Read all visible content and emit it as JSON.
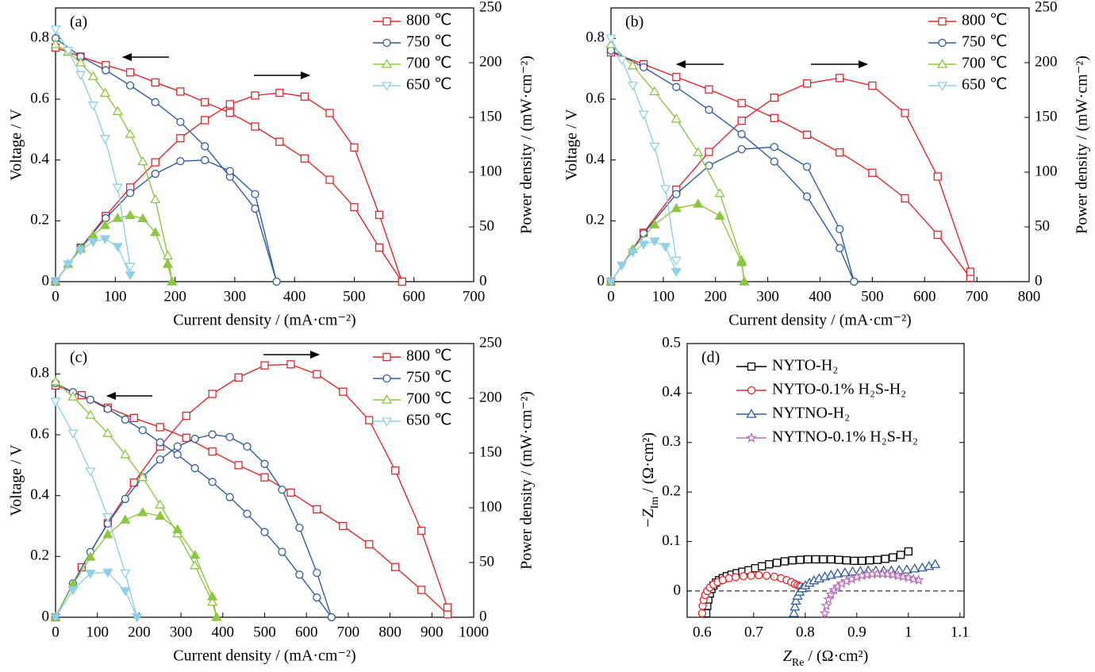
{
  "chart_data": [
    {
      "type": "line",
      "title": "(a)",
      "xlabel": "Current density / (mA·cm⁻²)",
      "ylabel": "Voltage / V",
      "y2label": "Power density / (mW·cm⁻²)",
      "xlim": [
        0,
        700
      ],
      "xticks": [
        0,
        100,
        200,
        300,
        400,
        500,
        600,
        700
      ],
      "ylim": [
        0,
        0.9
      ],
      "yticks": [
        0,
        0.2,
        0.4,
        0.6,
        0.8
      ],
      "y2lim": [
        0,
        250
      ],
      "y2ticks": [
        0,
        50,
        100,
        150,
        200,
        250
      ],
      "legend": "upper right",
      "series": [
        {
          "name": "800 ℃",
          "color": "#e3262a",
          "marker": "square",
          "power_filled": false,
          "x": [
            0,
            42,
            84,
            125,
            167,
            209,
            250,
            292,
            334,
            375,
            417,
            459,
            500,
            542,
            580
          ],
          "values": [
            0.77,
            0.74,
            0.712,
            0.688,
            0.655,
            0.625,
            0.59,
            0.555,
            0.51,
            0.46,
            0.405,
            0.335,
            0.245,
            0.112,
            0
          ],
          "power": [
            0,
            31,
            60,
            86,
            109,
            131,
            147.5,
            162,
            170,
            172.5,
            169,
            154,
            122.5,
            61,
            0
          ]
        },
        {
          "name": "750 ℃",
          "color": "#2e5ca8",
          "marker": "circle",
          "power_filled": false,
          "x": [
            0,
            42,
            84,
            125,
            167,
            209,
            250,
            292,
            334,
            370
          ],
          "values": [
            0.8,
            0.74,
            0.695,
            0.645,
            0.59,
            0.525,
            0.445,
            0.345,
            0.24,
            0
          ],
          "power": [
            0,
            31,
            58,
            81,
            98.5,
            110,
            111,
            101,
            80,
            0
          ]
        },
        {
          "name": "700 ℃",
          "color": "#8dc63f",
          "marker": "triangle-up",
          "power_filled": true,
          "x": [
            0,
            21,
            42,
            63,
            83,
            104,
            125,
            146,
            167,
            188,
            195
          ],
          "values": [
            0.78,
            0.755,
            0.72,
            0.675,
            0.62,
            0.56,
            0.485,
            0.395,
            0.27,
            0.085,
            0
          ],
          "power": [
            0,
            16,
            30,
            42.5,
            51.5,
            58,
            60.6,
            57.7,
            45,
            16,
            0
          ]
        },
        {
          "name": "650 ℃",
          "color": "#8fcfe8",
          "marker": "triangle-down",
          "power_filled": true,
          "x": [
            0,
            21,
            42,
            63,
            83,
            104,
            125
          ],
          "values": [
            0.83,
            0.76,
            0.68,
            0.58,
            0.47,
            0.31,
            0.05
          ],
          "power": [
            0,
            16,
            28.6,
            36.5,
            39,
            32,
            6
          ]
        }
      ]
    },
    {
      "type": "line",
      "title": "(b)",
      "xlabel": "Current density / (mA·cm⁻²)",
      "ylabel": "Voltage / V",
      "y2label": "Power density / (mW·cm⁻²)",
      "xlim": [
        0,
        800
      ],
      "xticks": [
        0,
        100,
        200,
        300,
        400,
        500,
        600,
        700,
        800
      ],
      "ylim": [
        0,
        0.9
      ],
      "yticks": [
        0,
        0.2,
        0.4,
        0.6,
        0.8
      ],
      "y2lim": [
        0,
        250
      ],
      "y2ticks": [
        0,
        50,
        100,
        150,
        200,
        250
      ],
      "legend": "upper right",
      "series": [
        {
          "name": "800 ℃",
          "color": "#e3262a",
          "marker": "square",
          "power_filled": false,
          "x": [
            0,
            62.5,
            125,
            187.5,
            250,
            312.5,
            375,
            437.5,
            500,
            562.5,
            625,
            687.5
          ],
          "values": [
            0.754,
            0.715,
            0.673,
            0.632,
            0.587,
            0.538,
            0.483,
            0.425,
            0.358,
            0.274,
            0.154,
            0.013
          ],
          "power": [
            0,
            44.7,
            84,
            118.5,
            147,
            168,
            181,
            186,
            179,
            154,
            96,
            9
          ]
        },
        {
          "name": "750 ℃",
          "color": "#2e5ca8",
          "marker": "circle",
          "power_filled": false,
          "x": [
            0,
            62.5,
            125,
            187.5,
            250,
            312.5,
            375,
            437.5,
            465
          ],
          "values": [
            0.76,
            0.705,
            0.64,
            0.565,
            0.485,
            0.395,
            0.28,
            0.11,
            0
          ],
          "power": [
            0,
            44,
            80,
            106,
            121,
            123,
            105,
            48,
            0
          ]
        },
        {
          "name": "700 ℃",
          "color": "#8dc63f",
          "marker": "triangle-up",
          "power_filled": true,
          "x": [
            0,
            41.7,
            83.3,
            125,
            166.7,
            208.3,
            250,
            255
          ],
          "values": [
            0.78,
            0.71,
            0.625,
            0.535,
            0.425,
            0.29,
            0.07,
            0
          ],
          "power": [
            0,
            29.6,
            52,
            67,
            71,
            60,
            17.5,
            0
          ]
        },
        {
          "name": "650 ℃",
          "color": "#8fcfe8",
          "marker": "triangle-down",
          "power_filled": true,
          "x": [
            0,
            20.8,
            41.7,
            62.5,
            83.3,
            104.2,
            125
          ],
          "values": [
            0.8,
            0.73,
            0.645,
            0.55,
            0.445,
            0.305,
            0.07
          ],
          "power": [
            0,
            15,
            27,
            34,
            37,
            32,
            9
          ]
        }
      ]
    },
    {
      "type": "line",
      "title": "(c)",
      "xlabel": "Current density / (mA·cm⁻²)",
      "ylabel": "Voltage / V",
      "y2label": "Power density / (mW·cm⁻²)",
      "xlim": [
        0,
        1000
      ],
      "xticks": [
        0,
        100,
        200,
        300,
        400,
        500,
        600,
        700,
        800,
        900,
        1000
      ],
      "ylim": [
        0,
        0.9
      ],
      "yticks": [
        0,
        0.2,
        0.4,
        0.6,
        0.8
      ],
      "y2lim": [
        0,
        250
      ],
      "y2ticks": [
        0,
        50,
        100,
        150,
        200,
        250
      ],
      "legend": "upper right",
      "series": [
        {
          "name": "800 ℃",
          "color": "#e3262a",
          "marker": "square",
          "power_filled": false,
          "x": [
            0,
            62.5,
            125,
            187.5,
            250,
            312.5,
            375,
            437.5,
            500,
            562.5,
            625,
            687.5,
            750,
            812.5,
            875,
            937.5
          ],
          "values": [
            0.762,
            0.73,
            0.689,
            0.655,
            0.625,
            0.59,
            0.545,
            0.5,
            0.46,
            0.41,
            0.355,
            0.3,
            0.24,
            0.165,
            0.09,
            0.01
          ],
          "power": [
            0,
            45.6,
            86,
            123,
            156,
            184,
            204,
            219,
            230,
            231,
            222,
            206,
            180,
            134,
            79,
            9
          ]
        },
        {
          "name": "750 ℃",
          "color": "#2e5ca8",
          "marker": "circle",
          "power_filled": false,
          "x": [
            0,
            41.7,
            83.3,
            125,
            166.7,
            208.3,
            250,
            291.7,
            333.3,
            375,
            416.7,
            458.3,
            500,
            541.7,
            583.3,
            625,
            660
          ],
          "values": [
            0.77,
            0.74,
            0.715,
            0.685,
            0.65,
            0.615,
            0.575,
            0.535,
            0.49,
            0.445,
            0.395,
            0.34,
            0.28,
            0.215,
            0.14,
            0.065,
            0
          ],
          "power": [
            0,
            30.9,
            59.6,
            85.6,
            108,
            128,
            144,
            156,
            163,
            167,
            164.6,
            156,
            140,
            116.5,
            81.7,
            40.6,
            0
          ]
        },
        {
          "name": "700 ℃",
          "color": "#8dc63f",
          "marker": "triangle-up",
          "power_filled": true,
          "x": [
            0,
            41.7,
            83.3,
            125,
            166.7,
            208.3,
            250,
            291.7,
            333.3,
            375,
            385
          ],
          "values": [
            0.775,
            0.725,
            0.665,
            0.605,
            0.535,
            0.46,
            0.37,
            0.275,
            0.17,
            0.05,
            0
          ],
          "power": [
            0,
            30,
            55,
            75.6,
            89,
            95.8,
            92.5,
            80,
            56.7,
            18.8,
            0
          ]
        },
        {
          "name": "650 ℃",
          "color": "#8fcfe8",
          "marker": "triangle-down",
          "power_filled": true,
          "x": [
            0,
            41.7,
            83.3,
            125,
            166.7,
            195
          ],
          "values": [
            0.71,
            0.605,
            0.48,
            0.33,
            0.145,
            0
          ],
          "power": [
            0,
            25,
            40,
            41,
            24,
            0
          ]
        }
      ]
    },
    {
      "type": "scatter",
      "title": "(d)",
      "xlabel": [
        "Z",
        "Re",
        " / (Ω·cm²)"
      ],
      "ylabel": [
        "−Z",
        "Im",
        " / (Ω·cm²)"
      ],
      "xlim": [
        0.571,
        1.108
      ],
      "xticks": [
        0.6,
        0.7,
        0.8,
        0.9,
        1,
        1.1
      ],
      "ylim": [
        -0.053,
        0.5
      ],
      "yticks": [
        0,
        0.1,
        0.2,
        0.3,
        0.4,
        0.5
      ],
      "legend": "upper left",
      "series": [
        {
          "name": "NYTO-H₂",
          "color": "#000000",
          "marker": "square",
          "x": [
            0.608,
            0.61,
            0.612,
            0.615,
            0.618,
            0.622,
            0.627,
            0.633,
            0.64,
            0.648,
            0.657,
            0.667,
            0.678,
            0.69,
            0.703,
            0.716,
            0.73,
            0.745,
            0.76,
            0.775,
            0.79,
            0.805,
            0.82,
            0.835,
            0.85,
            0.865,
            0.88,
            0.895,
            0.91,
            0.925,
            0.94,
            0.955,
            0.97,
            0.985,
            1.0
          ],
          "values": [
            -0.045,
            -0.03,
            -0.017,
            -0.005,
            0.004,
            0.011,
            0.017,
            0.022,
            0.026,
            0.03,
            0.033,
            0.036,
            0.039,
            0.042,
            0.046,
            0.05,
            0.054,
            0.057,
            0.06,
            0.062,
            0.063,
            0.064,
            0.064,
            0.064,
            0.064,
            0.063,
            0.062,
            0.061,
            0.061,
            0.062,
            0.063,
            0.065,
            0.068,
            0.073,
            0.08
          ]
        },
        {
          "name": "NYTO-0.1% H₂S-H₂",
          "color": "#e3262a",
          "marker": "circle",
          "x": [
            0.6,
            0.601,
            0.603,
            0.606,
            0.61,
            0.615,
            0.622,
            0.63,
            0.64,
            0.652,
            0.665,
            0.68,
            0.695,
            0.71,
            0.725,
            0.74,
            0.753,
            0.764,
            0.773,
            0.78,
            0.785,
            0.789,
            0.792
          ],
          "values": [
            -0.045,
            -0.03,
            -0.018,
            -0.008,
            0.0,
            0.007,
            0.013,
            0.018,
            0.022,
            0.026,
            0.028,
            0.03,
            0.031,
            0.032,
            0.031,
            0.029,
            0.026,
            0.022,
            0.018,
            0.014,
            0.012,
            0.01,
            0.009
          ]
        },
        {
          "name": "NYTNO-H₂",
          "color": "#2e5ca8",
          "marker": "triangle-up",
          "x": [
            0.778,
            0.78,
            0.782,
            0.785,
            0.789,
            0.794,
            0.8,
            0.808,
            0.817,
            0.827,
            0.838,
            0.85,
            0.863,
            0.877,
            0.892,
            0.907,
            0.922,
            0.937,
            0.952,
            0.967,
            0.982,
            0.997,
            1.012,
            1.027,
            1.04,
            1.052
          ],
          "values": [
            -0.045,
            -0.032,
            -0.02,
            -0.01,
            -0.002,
            0.005,
            0.011,
            0.016,
            0.021,
            0.025,
            0.029,
            0.032,
            0.035,
            0.037,
            0.039,
            0.04,
            0.041,
            0.041,
            0.041,
            0.041,
            0.042,
            0.043,
            0.045,
            0.047,
            0.05,
            0.054
          ]
        },
        {
          "name": "NYTNO-0.1% H₂S-H₂",
          "color": "#b873b8",
          "marker": "star",
          "x": [
            0.838,
            0.841,
            0.845,
            0.85,
            0.856,
            0.863,
            0.871,
            0.88,
            0.89,
            0.9,
            0.91,
            0.92,
            0.93,
            0.94,
            0.95,
            0.96,
            0.97,
            0.98,
            0.99,
            1.0,
            1.01,
            1.02
          ],
          "values": [
            -0.045,
            -0.03,
            -0.017,
            -0.007,
            0.002,
            0.009,
            0.015,
            0.02,
            0.024,
            0.028,
            0.031,
            0.033,
            0.034,
            0.035,
            0.035,
            0.034,
            0.033,
            0.031,
            0.029,
            0.027,
            0.024,
            0.022
          ]
        }
      ]
    }
  ]
}
